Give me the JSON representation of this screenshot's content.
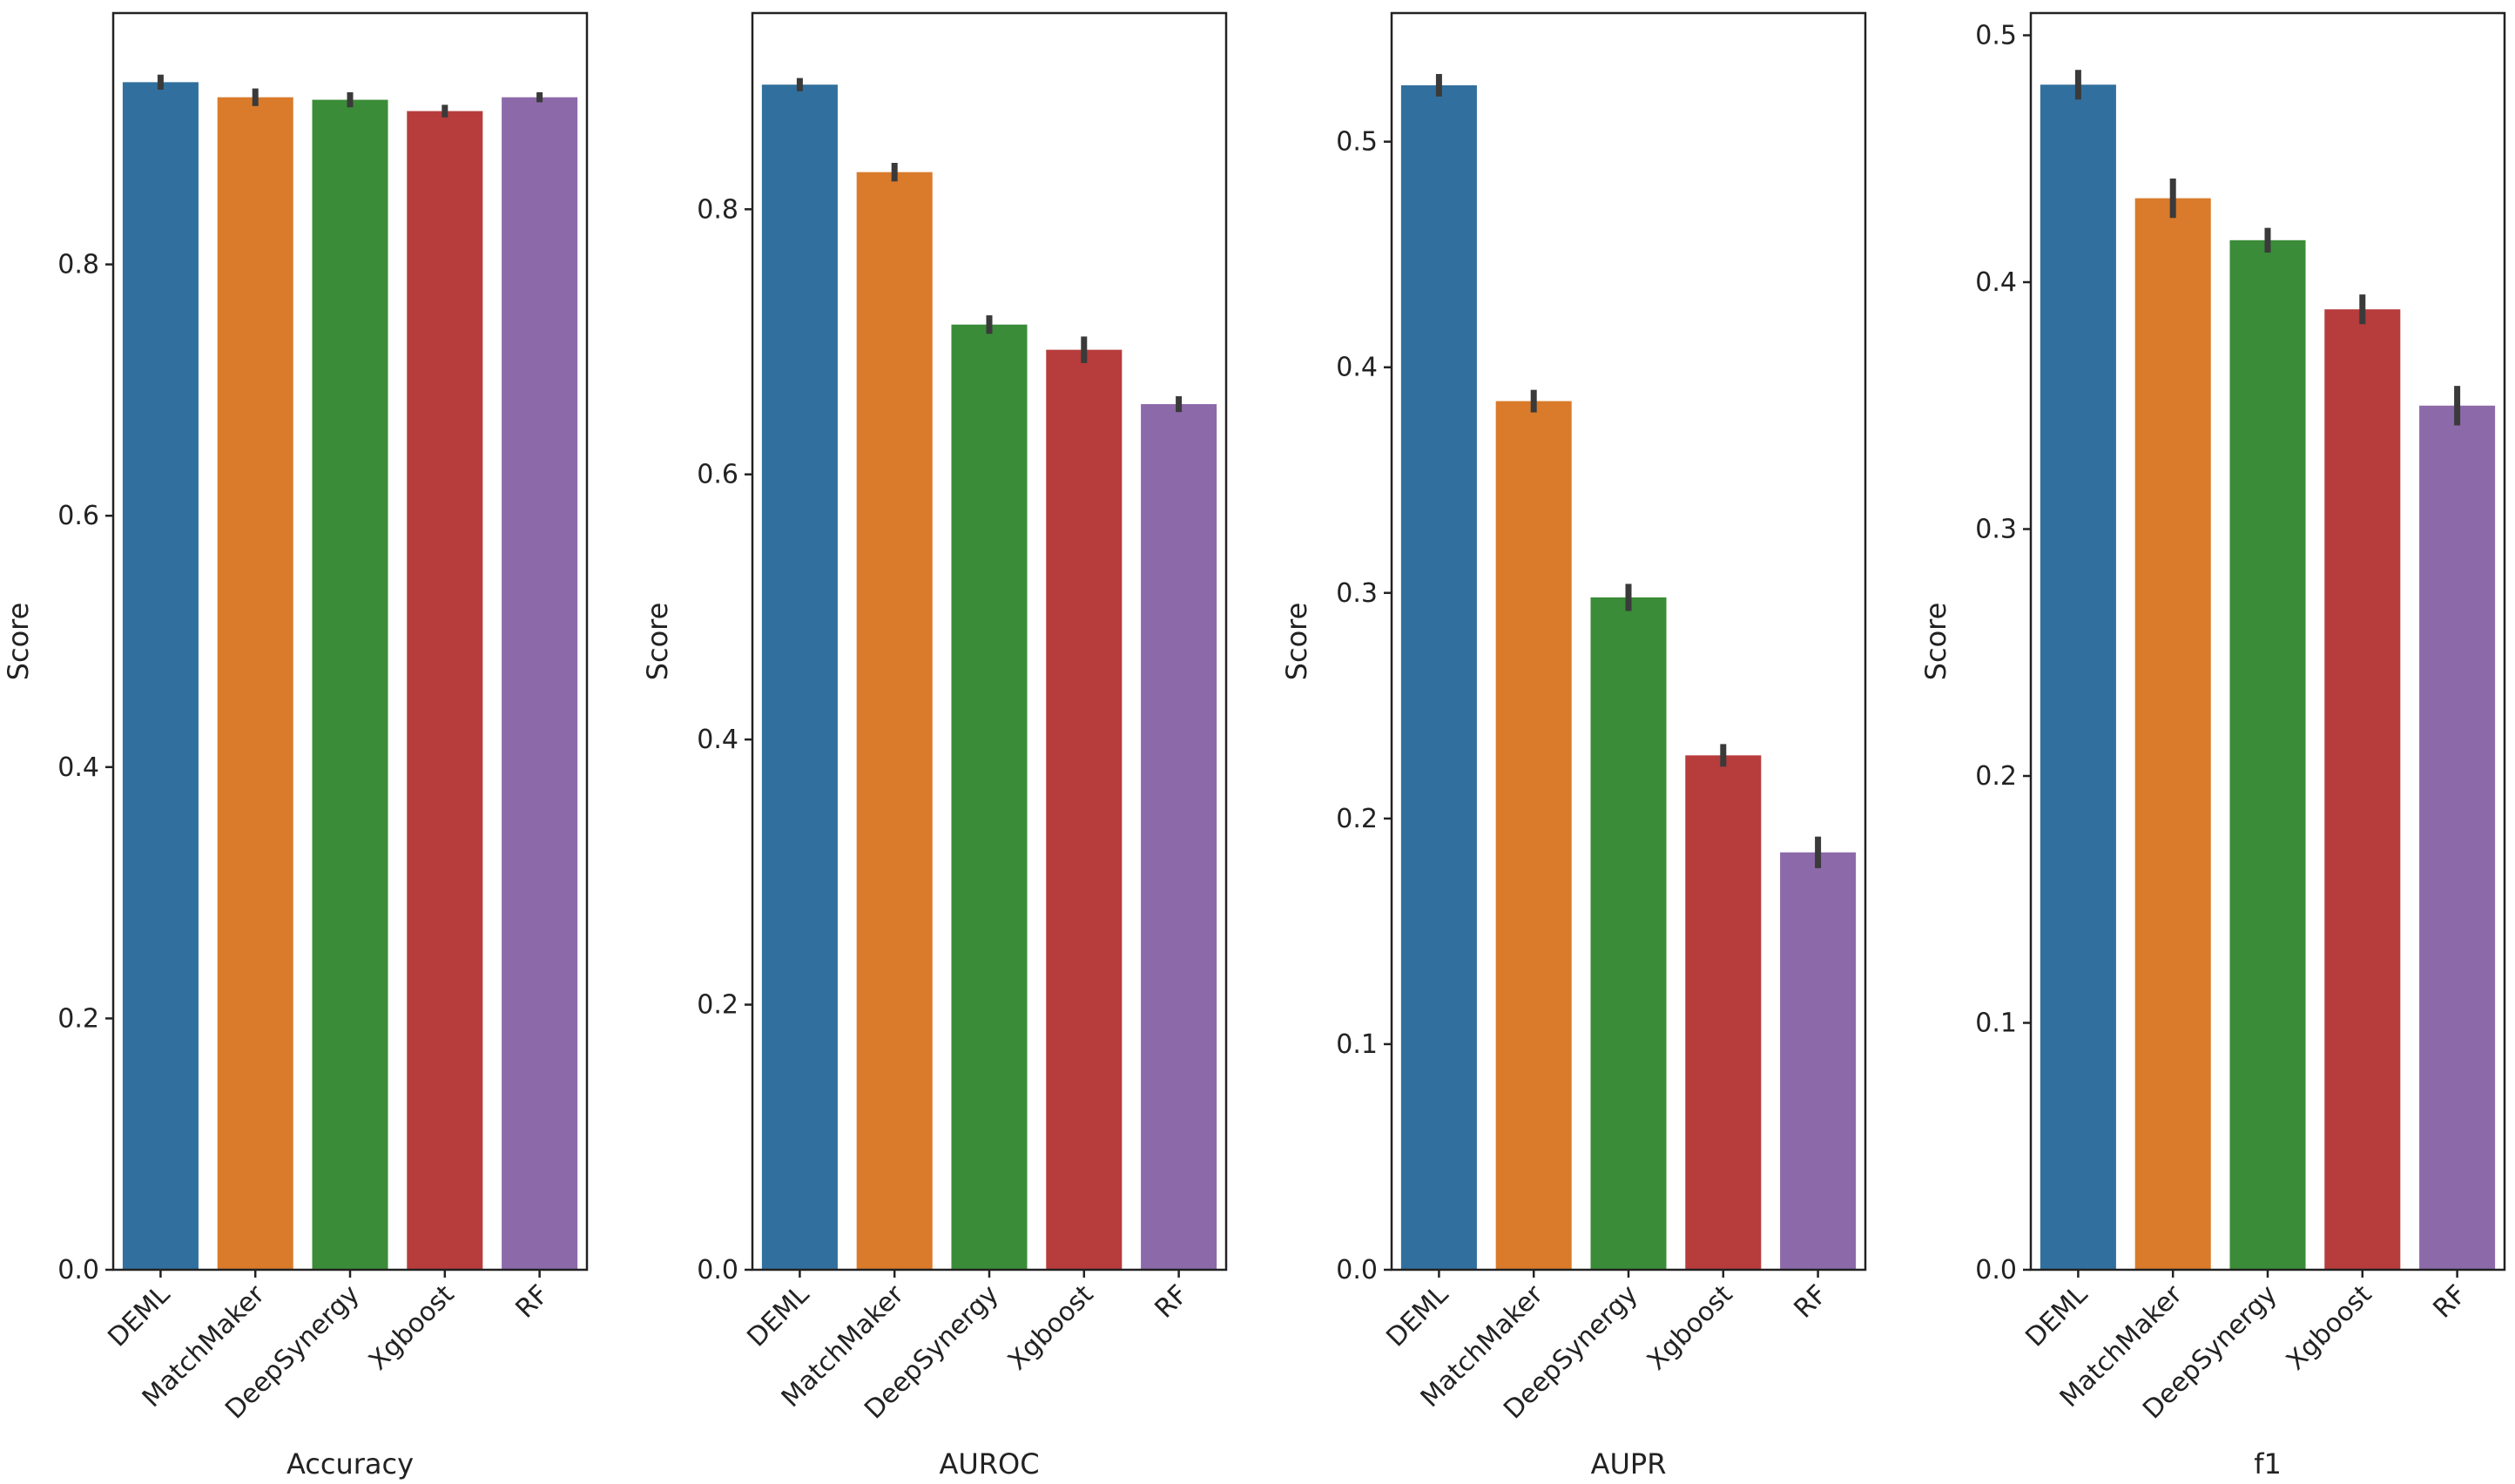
{
  "colors": {
    "DEML": "#31709e",
    "MatchMaker": "#d97b2b",
    "DeepSynergy": "#3b8c38",
    "Xgboost": "#b73c3c",
    "RF": "#8c6aaa",
    "error_bar": "#3a3a3a",
    "axis": "#222222"
  },
  "chart_data": [
    {
      "type": "bar",
      "categories": [
        "DEML",
        "MatchMaker",
        "DeepSynergy",
        "Xgboost",
        "RF"
      ],
      "values": [
        0.945,
        0.933,
        0.931,
        0.922,
        0.933
      ],
      "error": [
        0.006,
        0.007,
        0.006,
        0.005,
        0.004
      ],
      "xlabel": "Accuracy",
      "ylabel": "Score",
      "ylim": [
        0,
        1.0
      ],
      "yticks": [
        "0.0",
        "0.2",
        "0.4",
        "0.6",
        "0.8"
      ],
      "ytick_values": [
        0.0,
        0.2,
        0.4,
        0.6,
        0.8
      ],
      "grid": false
    },
    {
      "type": "bar",
      "categories": [
        "DEML",
        "MatchMaker",
        "DeepSynergy",
        "Xgboost",
        "RF"
      ],
      "values": [
        0.894,
        0.828,
        0.713,
        0.694,
        0.653
      ],
      "error": [
        0.005,
        0.007,
        0.007,
        0.01,
        0.006
      ],
      "xlabel": "AUROC",
      "ylabel": "Score",
      "ylim": [
        0,
        0.948
      ],
      "yticks": [
        "0.0",
        "0.2",
        "0.4",
        "0.6",
        "0.8"
      ],
      "ytick_values": [
        0.0,
        0.2,
        0.4,
        0.6,
        0.8
      ],
      "grid": false
    },
    {
      "type": "bar",
      "categories": [
        "DEML",
        "MatchMaker",
        "DeepSynergy",
        "Xgboost",
        "RF"
      ],
      "values": [
        0.525,
        0.385,
        0.298,
        0.228,
        0.185
      ],
      "error": [
        0.005,
        0.005,
        0.006,
        0.005,
        0.007
      ],
      "xlabel": "AUPR",
      "ylabel": "Score",
      "ylim": [
        0,
        0.557
      ],
      "yticks": [
        "0.0",
        "0.1",
        "0.2",
        "0.3",
        "0.4",
        "0.5"
      ],
      "ytick_values": [
        0.0,
        0.1,
        0.2,
        0.3,
        0.4,
        0.5
      ],
      "grid": false
    },
    {
      "type": "bar",
      "categories": [
        "DEML",
        "MatchMaker",
        "DeepSynergy",
        "Xgboost",
        "RF"
      ],
      "values": [
        0.48,
        0.434,
        0.417,
        0.389,
        0.35
      ],
      "error": [
        0.006,
        0.008,
        0.005,
        0.006,
        0.008
      ],
      "xlabel": "f1",
      "ylabel": "Score",
      "ylim": [
        0,
        0.509
      ],
      "yticks": [
        "0.0",
        "0.1",
        "0.2",
        "0.3",
        "0.4",
        "0.5"
      ],
      "ytick_values": [
        0.0,
        0.1,
        0.2,
        0.3,
        0.4,
        0.5
      ],
      "grid": false
    }
  ]
}
